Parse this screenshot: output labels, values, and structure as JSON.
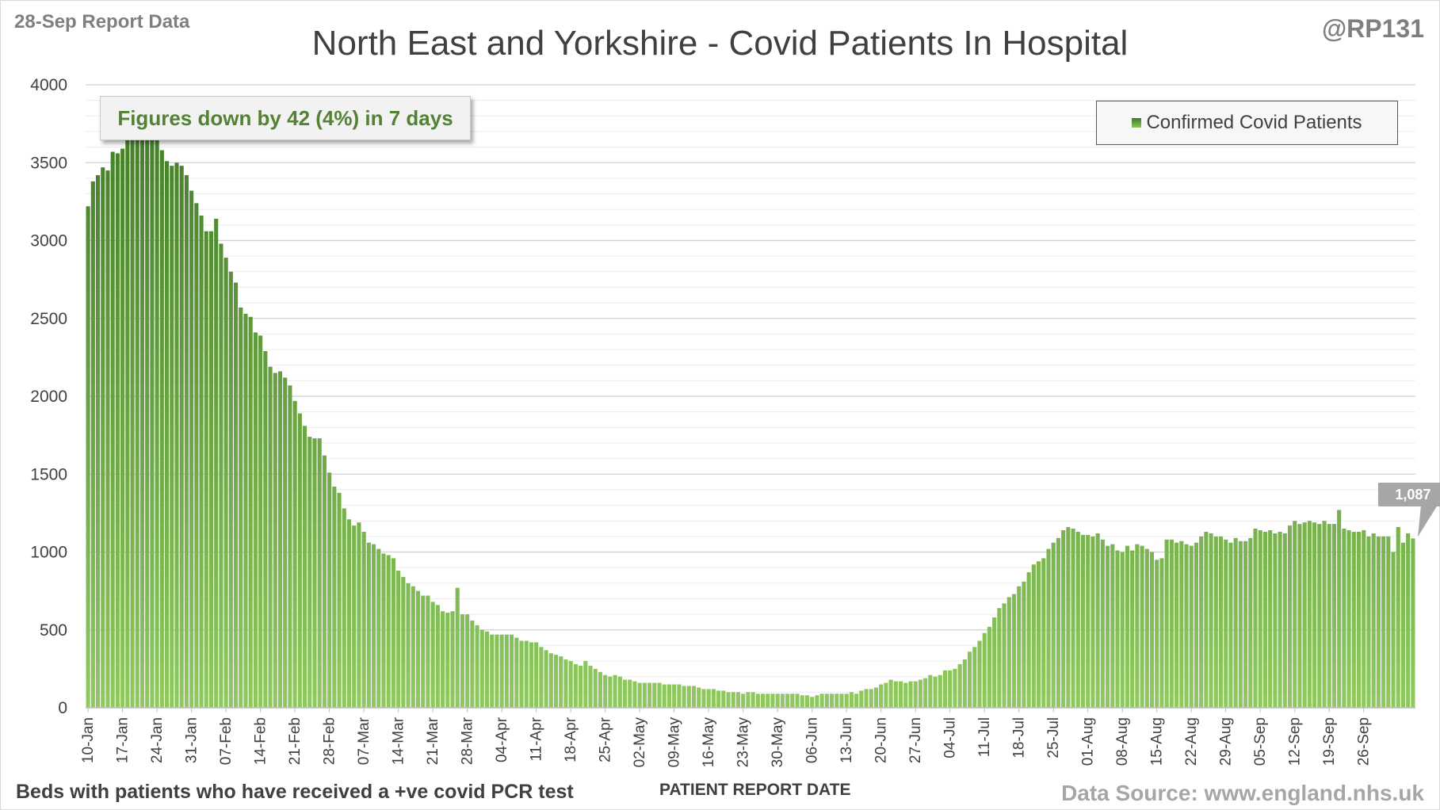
{
  "header": {
    "report_date": "28-Sep Report Data",
    "title": "North East and Yorkshire - Covid Patients In Hospital",
    "handle": "@RP131"
  },
  "callout": {
    "text": "Figures down by 42 (4%) in 7 days"
  },
  "legend": {
    "label": "Confirmed Covid Patients"
  },
  "footer": {
    "note": "Beds with patients who have received a +ve covid PCR test",
    "xlabel": "PATIENT REPORT DATE",
    "source": "Data Source: www.england.nhs.uk"
  },
  "last_value_label": "1,087",
  "colors": {
    "bar_top": "#3f7a24",
    "bar_bottom": "#8fc95f",
    "grid": "#d9d9d9"
  },
  "chart_data": {
    "type": "bar",
    "title": "North East and Yorkshire - Covid Patients In Hospital",
    "xlabel": "PATIENT REPORT DATE",
    "ylabel": "",
    "ylim": [
      0,
      4000
    ],
    "yticks": [
      0,
      500,
      1000,
      1500,
      2000,
      2500,
      3000,
      3500,
      4000
    ],
    "grid": true,
    "legend_position": "top-right",
    "xtick_labels": [
      "10-Jan",
      "17-Jan",
      "24-Jan",
      "31-Jan",
      "07-Feb",
      "14-Feb",
      "21-Feb",
      "28-Feb",
      "07-Mar",
      "14-Mar",
      "21-Mar",
      "28-Mar",
      "04-Apr",
      "11-Apr",
      "18-Apr",
      "25-Apr",
      "02-May",
      "09-May",
      "16-May",
      "23-May",
      "30-May",
      "06-Jun",
      "13-Jun",
      "20-Jun",
      "27-Jun",
      "04-Jul",
      "11-Jul",
      "18-Jul",
      "25-Jul",
      "01-Aug",
      "08-Aug",
      "15-Aug",
      "22-Aug",
      "29-Aug",
      "05-Sep",
      "12-Sep",
      "19-Sep",
      "26-Sep"
    ],
    "series": [
      {
        "name": "Confirmed Covid Patients",
        "start_date": "10-Jan",
        "values": [
          3220,
          3380,
          3420,
          3470,
          3450,
          3570,
          3560,
          3590,
          3720,
          3720,
          3750,
          3760,
          3720,
          3720,
          3720,
          3580,
          3510,
          3480,
          3500,
          3480,
          3420,
          3320,
          3240,
          3160,
          3060,
          3060,
          3140,
          2980,
          2890,
          2800,
          2730,
          2570,
          2530,
          2510,
          2410,
          2390,
          2290,
          2190,
          2150,
          2160,
          2120,
          2070,
          1970,
          1890,
          1810,
          1740,
          1730,
          1730,
          1620,
          1510,
          1420,
          1380,
          1280,
          1210,
          1170,
          1190,
          1130,
          1060,
          1050,
          1020,
          990,
          980,
          960,
          880,
          840,
          800,
          780,
          750,
          720,
          720,
          680,
          660,
          620,
          610,
          620,
          770,
          600,
          600,
          560,
          530,
          500,
          490,
          470,
          470,
          470,
          470,
          470,
          450,
          430,
          430,
          420,
          420,
          390,
          370,
          350,
          340,
          330,
          310,
          300,
          280,
          270,
          300,
          270,
          250,
          230,
          210,
          200,
          210,
          200,
          180,
          180,
          170,
          160,
          160,
          160,
          160,
          160,
          150,
          150,
          150,
          150,
          140,
          140,
          140,
          130,
          120,
          120,
          120,
          110,
          110,
          100,
          100,
          100,
          90,
          100,
          100,
          90,
          90,
          90,
          90,
          90,
          90,
          90,
          90,
          90,
          80,
          80,
          70,
          80,
          90,
          90,
          90,
          90,
          90,
          90,
          100,
          90,
          110,
          120,
          120,
          130,
          150,
          160,
          180,
          170,
          170,
          160,
          170,
          170,
          180,
          190,
          210,
          200,
          210,
          240,
          240,
          250,
          280,
          310,
          360,
          390,
          430,
          480,
          520,
          580,
          640,
          670,
          710,
          730,
          780,
          810,
          870,
          920,
          940,
          960,
          1020,
          1060,
          1090,
          1140,
          1160,
          1150,
          1130,
          1110,
          1110,
          1100,
          1120,
          1080,
          1040,
          1050,
          1010,
          1000,
          1040,
          1010,
          1050,
          1040,
          1020,
          1000,
          950,
          960,
          1080,
          1080,
          1060,
          1070,
          1050,
          1040,
          1060,
          1100,
          1130,
          1120,
          1100,
          1100,
          1080,
          1060,
          1090,
          1070,
          1070,
          1090,
          1150,
          1140,
          1130,
          1140,
          1120,
          1130,
          1120,
          1170,
          1200,
          1180,
          1190,
          1200,
          1190,
          1180,
          1200,
          1180,
          1180,
          1270,
          1150,
          1140,
          1130,
          1130,
          1140,
          1100,
          1120,
          1100,
          1100,
          1100,
          1000,
          1160,
          1060,
          1120,
          1087
        ]
      }
    ]
  }
}
